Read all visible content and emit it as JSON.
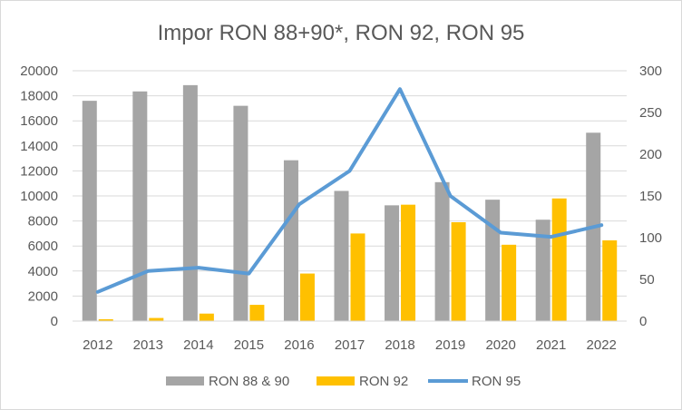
{
  "chart_data": {
    "type": "bar",
    "title": "Impor RON 88+90*, RON 92, RON 95",
    "categories": [
      "2012",
      "2013",
      "2014",
      "2015",
      "2016",
      "2017",
      "2018",
      "2019",
      "2020",
      "2021",
      "2022"
    ],
    "series": [
      {
        "name": "RON 88 & 90",
        "type": "bar",
        "axis": "left",
        "color": "#a5a5a5",
        "values": [
          17600,
          18350,
          18850,
          17200,
          12850,
          10400,
          9250,
          11100,
          9700,
          8100,
          15050
        ]
      },
      {
        "name": "RON 92",
        "type": "bar",
        "axis": "left",
        "color": "#ffc000",
        "values": [
          150,
          250,
          600,
          1300,
          3800,
          7000,
          9300,
          7900,
          6100,
          9800,
          6450
        ]
      },
      {
        "name": "RON 95",
        "type": "line",
        "axis": "right",
        "color": "#5b9bd5",
        "values": [
          35,
          60,
          64,
          57,
          140,
          180,
          278,
          150,
          106,
          101,
          115
        ]
      }
    ],
    "y_left": {
      "min": 0,
      "max": 20000,
      "step": 2000,
      "ticks": [
        "0",
        "2000",
        "4000",
        "6000",
        "8000",
        "10000",
        "12000",
        "14000",
        "16000",
        "18000",
        "20000"
      ]
    },
    "y_right": {
      "min": 0,
      "max": 300,
      "step": 50,
      "ticks": [
        "0",
        "50",
        "100",
        "150",
        "200",
        "250",
        "300"
      ]
    },
    "grid": true,
    "legend_position": "bottom"
  }
}
